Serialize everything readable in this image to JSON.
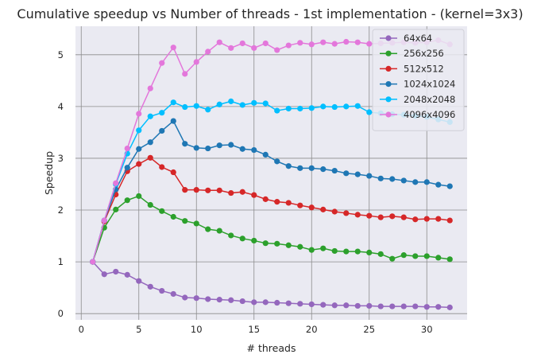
{
  "chart_data": {
    "type": "line",
    "title": "Cumulative speedup vs Number of threads - 1st implementation - (kernel=3x3)",
    "xlabel": "# threads",
    "ylabel": "Speedup",
    "xlim": [
      -0.5,
      33.5
    ],
    "ylim": [
      -0.12,
      5.55
    ],
    "xticks": [
      0,
      5,
      10,
      15,
      20,
      25,
      30
    ],
    "yticks": [
      0,
      1,
      2,
      3,
      4,
      5
    ],
    "grid": true,
    "legend_position": "top-right",
    "x": [
      1,
      2,
      3,
      4,
      5,
      6,
      7,
      8,
      9,
      10,
      11,
      12,
      13,
      14,
      15,
      16,
      17,
      18,
      19,
      20,
      21,
      22,
      23,
      24,
      25,
      26,
      27,
      28,
      29,
      30,
      31,
      32
    ],
    "series": [
      {
        "name": "64x64",
        "color": "#9467bd",
        "values": [
          1.0,
          0.76,
          0.81,
          0.75,
          0.63,
          0.52,
          0.44,
          0.38,
          0.31,
          0.3,
          0.28,
          0.27,
          0.26,
          0.24,
          0.22,
          0.22,
          0.21,
          0.2,
          0.19,
          0.18,
          0.17,
          0.16,
          0.16,
          0.15,
          0.15,
          0.14,
          0.14,
          0.14,
          0.14,
          0.13,
          0.13,
          0.12
        ]
      },
      {
        "name": "256x256",
        "color": "#2ca02c",
        "values": [
          1.0,
          1.66,
          2.01,
          2.19,
          2.27,
          2.1,
          1.98,
          1.87,
          1.79,
          1.74,
          1.63,
          1.6,
          1.51,
          1.45,
          1.41,
          1.36,
          1.35,
          1.32,
          1.29,
          1.23,
          1.26,
          1.21,
          1.2,
          1.2,
          1.18,
          1.15,
          1.06,
          1.13,
          1.11,
          1.11,
          1.08,
          1.05
        ]
      },
      {
        "name": "512x512",
        "color": "#d62728",
        "values": [
          1.0,
          1.78,
          2.3,
          2.75,
          2.89,
          3.01,
          2.83,
          2.73,
          2.39,
          2.39,
          2.38,
          2.38,
          2.33,
          2.35,
          2.29,
          2.21,
          2.16,
          2.14,
          2.09,
          2.05,
          2.01,
          1.97,
          1.94,
          1.91,
          1.89,
          1.86,
          1.88,
          1.86,
          1.82,
          1.83,
          1.83,
          1.8
        ]
      },
      {
        "name": "1024x1024",
        "color": "#1f77b4",
        "values": [
          1.0,
          1.8,
          2.4,
          2.82,
          3.18,
          3.31,
          3.53,
          3.72,
          3.28,
          3.2,
          3.19,
          3.25,
          3.26,
          3.18,
          3.16,
          3.07,
          2.94,
          2.85,
          2.81,
          2.81,
          2.79,
          2.76,
          2.71,
          2.69,
          2.66,
          2.61,
          2.6,
          2.57,
          2.54,
          2.54,
          2.49,
          2.46
        ]
      },
      {
        "name": "2048x2048",
        "color": "#00bfff",
        "values": [
          1.0,
          1.8,
          2.5,
          3.09,
          3.54,
          3.81,
          3.88,
          4.08,
          3.99,
          4.01,
          3.94,
          4.04,
          4.1,
          4.03,
          4.07,
          4.06,
          3.92,
          3.96,
          3.96,
          3.97,
          4.0,
          3.99,
          4.0,
          4.01,
          3.89,
          3.87,
          3.85,
          3.84,
          3.82,
          3.8,
          3.75,
          3.7
        ]
      },
      {
        "name": "4096x4096",
        "color": "#e377db",
        "values": [
          1.0,
          1.8,
          2.52,
          3.19,
          3.86,
          4.35,
          4.84,
          5.14,
          4.63,
          4.86,
          5.06,
          5.24,
          5.13,
          5.22,
          5.13,
          5.22,
          5.09,
          5.18,
          5.23,
          5.2,
          5.24,
          5.21,
          5.25,
          5.24,
          5.21,
          5.22,
          5.23,
          5.24,
          5.23,
          5.24,
          5.28,
          5.2
        ]
      }
    ]
  }
}
